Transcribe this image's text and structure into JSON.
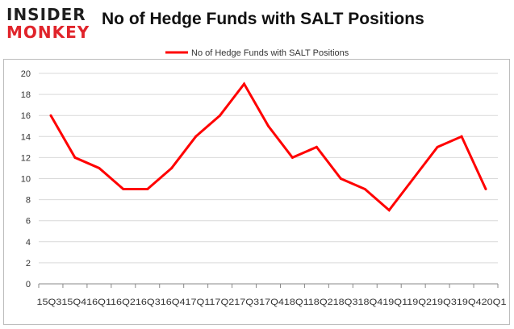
{
  "logo": {
    "line1": "INSIDER",
    "line2": "MONKEY"
  },
  "colors": {
    "series": "#ff0000",
    "grid": "#d9d9d9",
    "axis": "#888888",
    "text": "#333333"
  },
  "chart_data": {
    "type": "line",
    "title": "No of Hedge Funds with SALT Positions",
    "legend": {
      "position": "top",
      "entries": [
        "No of Hedge Funds with SALT Positions"
      ]
    },
    "categories": [
      "15Q3",
      "15Q4",
      "16Q1",
      "16Q2",
      "16Q3",
      "16Q4",
      "17Q1",
      "17Q2",
      "17Q3",
      "17Q4",
      "18Q1",
      "18Q2",
      "18Q3",
      "18Q4",
      "19Q1",
      "19Q2",
      "19Q3",
      "19Q4",
      "20Q1"
    ],
    "x_tick_text": "15Q315Q416Q116Q216Q316Q417Q117Q217Q317Q418Q118Q218Q318Q419Q119Q219Q319Q420Q1",
    "series": [
      {
        "name": "No of Hedge Funds with SALT Positions",
        "values": [
          16,
          12,
          11,
          9,
          9,
          11,
          14,
          16,
          19,
          15,
          12,
          13,
          10,
          9,
          7,
          10,
          13,
          14,
          9
        ]
      }
    ],
    "ylim": [
      0,
      20
    ],
    "yticks": [
      0,
      2,
      4,
      6,
      8,
      10,
      12,
      14,
      16,
      18,
      20
    ],
    "grid": true,
    "xlabel": "",
    "ylabel": ""
  }
}
